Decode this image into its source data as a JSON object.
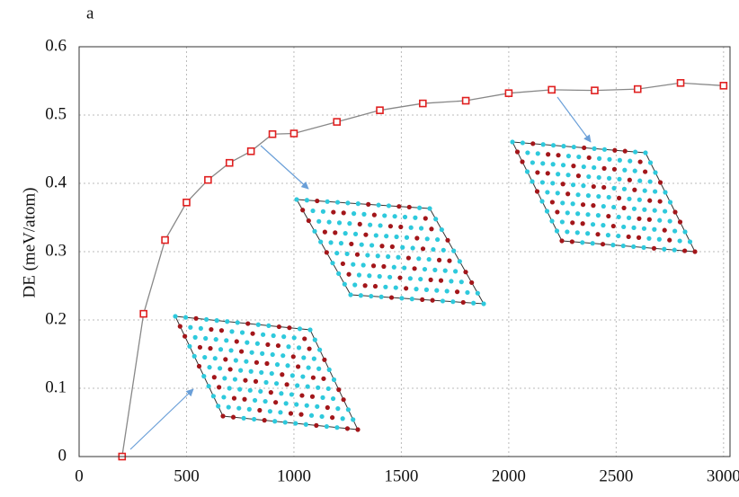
{
  "chart_data": {
    "type": "line",
    "panel_label": "a",
    "ylabel": "DE (meV/atom)",
    "x": [
      200,
      300,
      400,
      500,
      600,
      700,
      800,
      900,
      1000,
      1200,
      1400,
      1600,
      1800,
      2000,
      2200,
      2400,
      2600,
      2800,
      3000
    ],
    "series": [
      {
        "color": "#e02020",
        "line_color": "#888888",
        "values": [
          0,
          0.209,
          0.317,
          0.372,
          0.405,
          0.43,
          0.447,
          0.472,
          0.473,
          0.49,
          0.507,
          0.517,
          0.521,
          0.532,
          0.537,
          0.536,
          0.538,
          0.547,
          0.543
        ]
      }
    ],
    "xlim": [
      0,
      3030
    ],
    "xticks": [
      0,
      500,
      1000,
      1500,
      2000,
      2500,
      3000
    ],
    "ylim": [
      0,
      0.6
    ],
    "yticks": [
      0,
      0.1,
      0.2,
      0.3,
      0.4,
      0.5,
      0.6
    ],
    "grid": true
  }
}
